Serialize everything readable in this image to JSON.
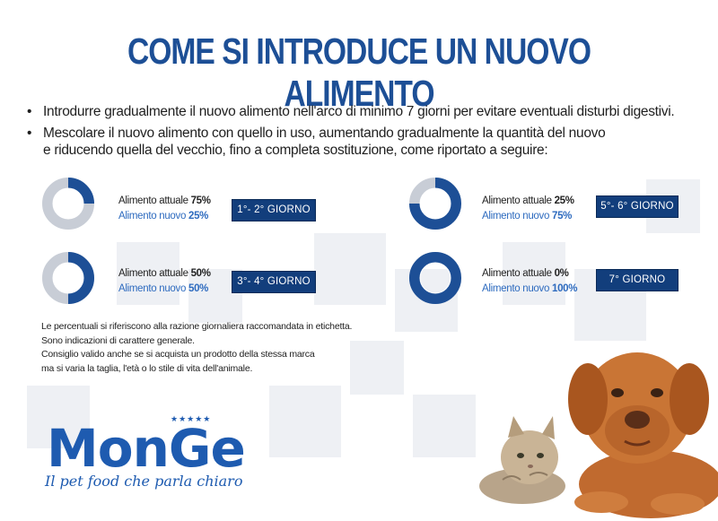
{
  "title": "COME SI INTRODUCE UN NUOVO ALIMENTO",
  "bullets": [
    {
      "lines": [
        "Introdurre gradualmente il nuovo alimento nell'arco di minimo 7 giorni per evitare eventuali disturbi digestivi."
      ]
    },
    {
      "lines": [
        "Mescolare il nuovo alimento con quello in uso, aumentando gradualmente la quantità del nuovo",
        "e riducendo quella del vecchio, fino a completa sostituzione, come riportato a seguire:"
      ]
    }
  ],
  "bullet_char": "•",
  "stages": [
    {
      "current_label": "Alimento attuale",
      "current_pct": "75%",
      "new_label": "Alimento nuovo",
      "new_pct": "25%",
      "badge": "1°- 2° GIORNO",
      "new_fraction": 0.25
    },
    {
      "current_label": "Alimento attuale",
      "current_pct": "50%",
      "new_label": "Alimento nuovo",
      "new_pct": "50%",
      "badge": "3°- 4° GIORNO",
      "new_fraction": 0.5
    },
    {
      "current_label": "Alimento attuale",
      "current_pct": "25%",
      "new_label": "Alimento nuovo",
      "new_pct": "75%",
      "badge": "5°- 6° GIORNO",
      "new_fraction": 0.75
    },
    {
      "current_label": "Alimento attuale",
      "current_pct": "0%",
      "new_label": "Alimento nuovo",
      "new_pct": "100%",
      "badge": "7° GIORNO",
      "new_fraction": 1.0
    }
  ],
  "notes": [
    "Le percentuali si riferiscono alla razione giornaliera raccomandata in etichetta.",
    "Sono indicazioni di carattere generale.",
    "Consiglio valido anche se si acquista un prodotto della stessa marca",
    "ma si varia la taglia, l'età o lo stile di vita dell'animale."
  ],
  "logo": {
    "word": "MonGe",
    "stars": "★★★★★",
    "tagline": "Il pet food che parla chiaro"
  },
  "colors": {
    "title": "#1d4f96",
    "badge": "#123e7c",
    "new_food": "#2e6bbf",
    "donut_new": "#1d4f96",
    "donut_old": "#c8cdd6",
    "logo": "#1e5bb0"
  },
  "illustration": "puppy-and-kitten-photo"
}
